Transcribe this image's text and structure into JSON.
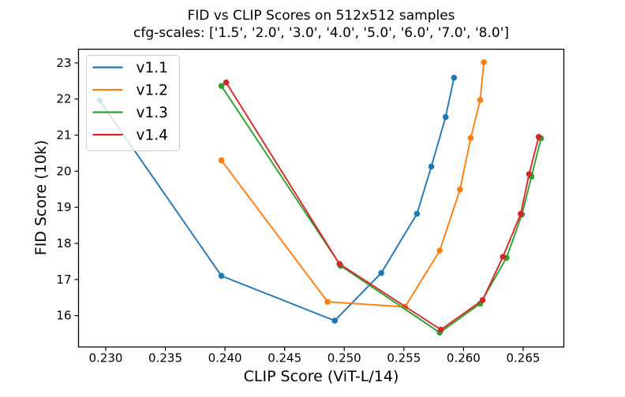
{
  "figure": {
    "background": "#ffffff"
  },
  "chart_data": {
    "type": "line",
    "title": "FID vs CLIP Scores on 512x512 samples",
    "subtitle": "cfg-scales: ['1.5', '2.0', '3.0', '4.0', '5.0', '6.0', '7.0', '8.0']",
    "xlabel": "CLIP Score (ViT-L/14)",
    "ylabel": "FID Score (10k)",
    "cfg_scales": [
      "1.5",
      "2.0",
      "3.0",
      "4.0",
      "5.0",
      "6.0",
      "7.0",
      "8.0"
    ],
    "xlim": [
      0.22772,
      0.26841
    ],
    "ylim": [
      15.13,
      23.38
    ],
    "xticks": {
      "values": [
        0.23,
        0.235,
        0.24,
        0.245,
        0.25,
        0.255,
        0.26,
        0.265
      ],
      "labels": [
        "0.230",
        "0.235",
        "0.240",
        "0.245",
        "0.250",
        "0.255",
        "0.260",
        "0.265"
      ]
    },
    "yticks": {
      "values": [
        16,
        17,
        18,
        19,
        20,
        21,
        22,
        23
      ],
      "labels": [
        "16",
        "17",
        "18",
        "19",
        "20",
        "21",
        "22",
        "23"
      ]
    },
    "grid": false,
    "marker": "circle",
    "axis_color": "#000000",
    "legend": {
      "position": "upper-left",
      "frame_fill": "rgba(255,255,255,0.8)",
      "frame_border": "#cccccc"
    },
    "series": [
      {
        "name": "v1.1",
        "color": "#1f77b4",
        "points": [
          [
            0.2295,
            21.96
          ],
          [
            0.2397,
            17.1
          ],
          [
            0.2492,
            15.86
          ],
          [
            0.2531,
            17.18
          ],
          [
            0.2561,
            18.82
          ],
          [
            0.2573,
            20.13
          ],
          [
            0.2585,
            21.5
          ],
          [
            0.2592,
            22.59
          ]
        ]
      },
      {
        "name": "v1.2",
        "color": "#ff7f0e",
        "points": [
          [
            0.2397,
            20.3
          ],
          [
            0.2486,
            16.38
          ],
          [
            0.2551,
            16.24
          ],
          [
            0.258,
            17.8
          ],
          [
            0.2597,
            19.49
          ],
          [
            0.2606,
            20.92
          ],
          [
            0.2614,
            21.97
          ],
          [
            0.2617,
            23.02
          ]
        ]
      },
      {
        "name": "v1.3",
        "color": "#2ca02c",
        "points": [
          [
            0.2397,
            22.36
          ],
          [
            0.2497,
            17.38
          ],
          [
            0.258,
            15.53
          ],
          [
            0.2614,
            16.33
          ],
          [
            0.2636,
            17.6
          ],
          [
            0.2649,
            18.8
          ],
          [
            0.2657,
            19.85
          ],
          [
            0.2665,
            20.91
          ]
        ]
      },
      {
        "name": "v1.4",
        "color": "#d62728",
        "points": [
          [
            0.2401,
            22.46
          ],
          [
            0.2496,
            17.43
          ],
          [
            0.2581,
            15.61
          ],
          [
            0.2616,
            16.43
          ],
          [
            0.2633,
            17.63
          ],
          [
            0.2648,
            18.82
          ],
          [
            0.2655,
            19.92
          ],
          [
            0.2663,
            20.95
          ]
        ]
      }
    ]
  }
}
